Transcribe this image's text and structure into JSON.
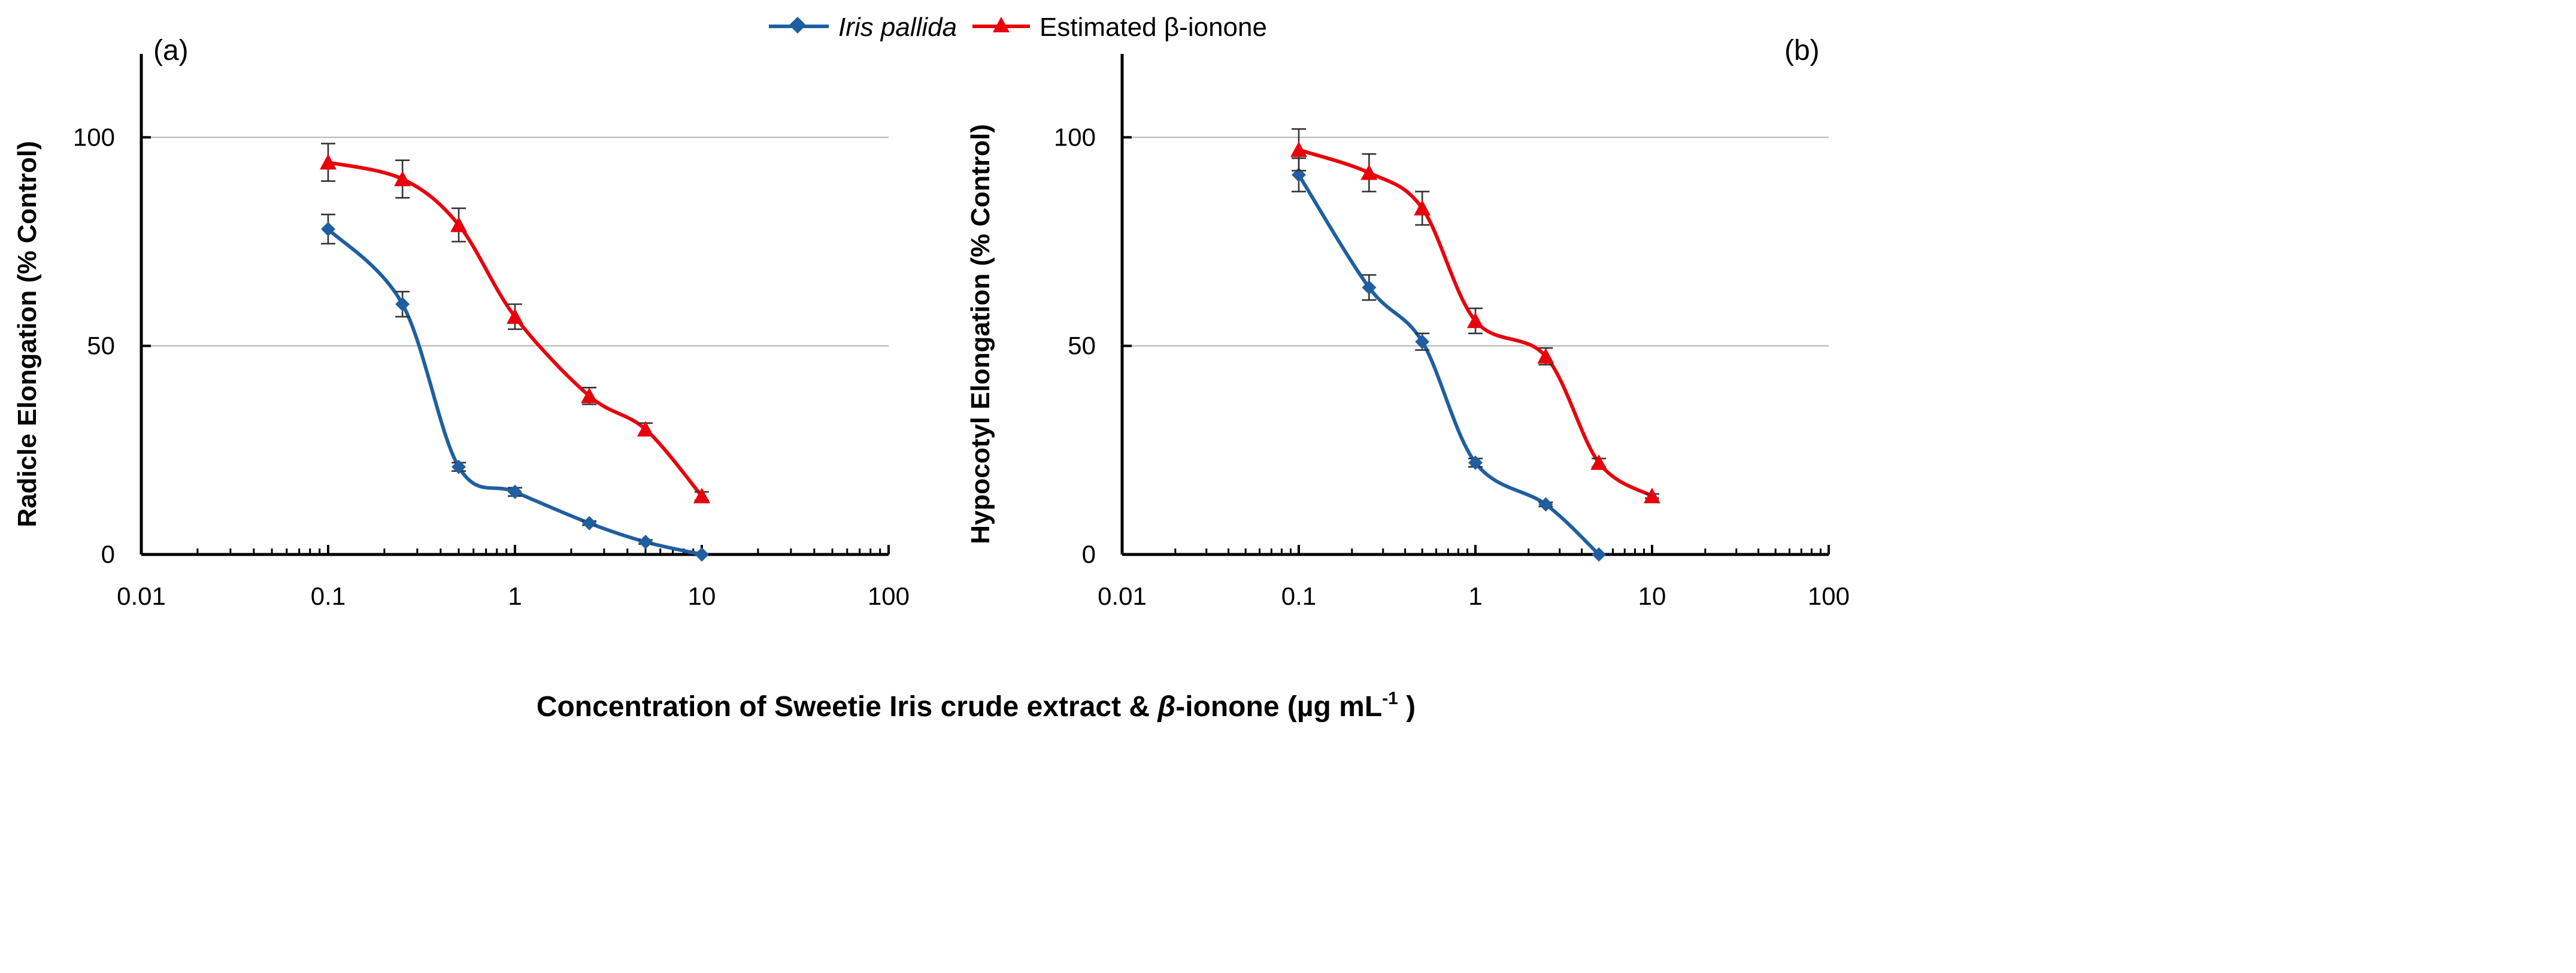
{
  "chart_data": [
    {
      "type": "line",
      "panel_label": "(a)",
      "ylabel": "Radicle Elongation (% Control)",
      "xscale": "log",
      "xlim": [
        0.01,
        100
      ],
      "ylim": [
        0,
        120
      ],
      "xticks": [
        "0.01",
        "0.1",
        "1",
        "10",
        "100"
      ],
      "yticks": [
        "0",
        "50",
        "100"
      ],
      "grid": "horizontal",
      "series": [
        {
          "name": "Iris pallida",
          "color": "#1f5fa0",
          "marker": "diamond",
          "x": [
            0.1,
            0.25,
            0.5,
            1,
            2.5,
            5,
            10
          ],
          "y": [
            78,
            60,
            21,
            15,
            7.5,
            3,
            0
          ],
          "err": [
            3.5,
            3,
            1,
            1,
            0.5,
            0.5,
            0
          ]
        },
        {
          "name": "Estimated β-ionone",
          "color": "#e8000b",
          "marker": "triangle",
          "x": [
            0.1,
            0.25,
            0.5,
            1,
            2.5,
            5,
            10
          ],
          "y": [
            94,
            90,
            79,
            57,
            38,
            30,
            14
          ],
          "err": [
            4.5,
            4.5,
            4,
            3,
            2,
            1.5,
            1
          ]
        }
      ]
    },
    {
      "type": "line",
      "panel_label": "(b)",
      "ylabel": "Hypocotyl Elongation (% Control)",
      "xscale": "log",
      "xlim": [
        0.01,
        100
      ],
      "ylim": [
        0,
        120
      ],
      "xticks": [
        "0.01",
        "0.1",
        "1",
        "10",
        "100"
      ],
      "yticks": [
        "0",
        "50",
        "100"
      ],
      "grid": "horizontal",
      "series": [
        {
          "name": "Iris pallida",
          "color": "#1f5fa0",
          "marker": "diamond",
          "x": [
            0.1,
            0.25,
            0.5,
            1,
            2.5,
            5
          ],
          "y": [
            91,
            64,
            51,
            22,
            12,
            0
          ],
          "err": [
            4,
            3,
            2,
            1,
            0.5,
            0
          ]
        },
        {
          "name": "Estimated β-ionone",
          "color": "#e8000b",
          "marker": "triangle",
          "x": [
            0.1,
            0.25,
            0.5,
            1,
            2.5,
            5,
            10
          ],
          "y": [
            97,
            91.5,
            83,
            56,
            47.5,
            22,
            14
          ],
          "err": [
            5,
            4.5,
            4,
            3,
            2,
            1,
            0.5
          ]
        }
      ]
    }
  ],
  "legend": {
    "items": [
      "Iris pallida",
      "Estimated β-ionone"
    ],
    "placement": "top-center"
  },
  "xlabel": {
    "main": "Concentration of Sweetie Iris crude extract & ",
    "beta": "β",
    "rest": "-ionone (µg mL",
    "sup": "-1",
    "end": " )"
  }
}
